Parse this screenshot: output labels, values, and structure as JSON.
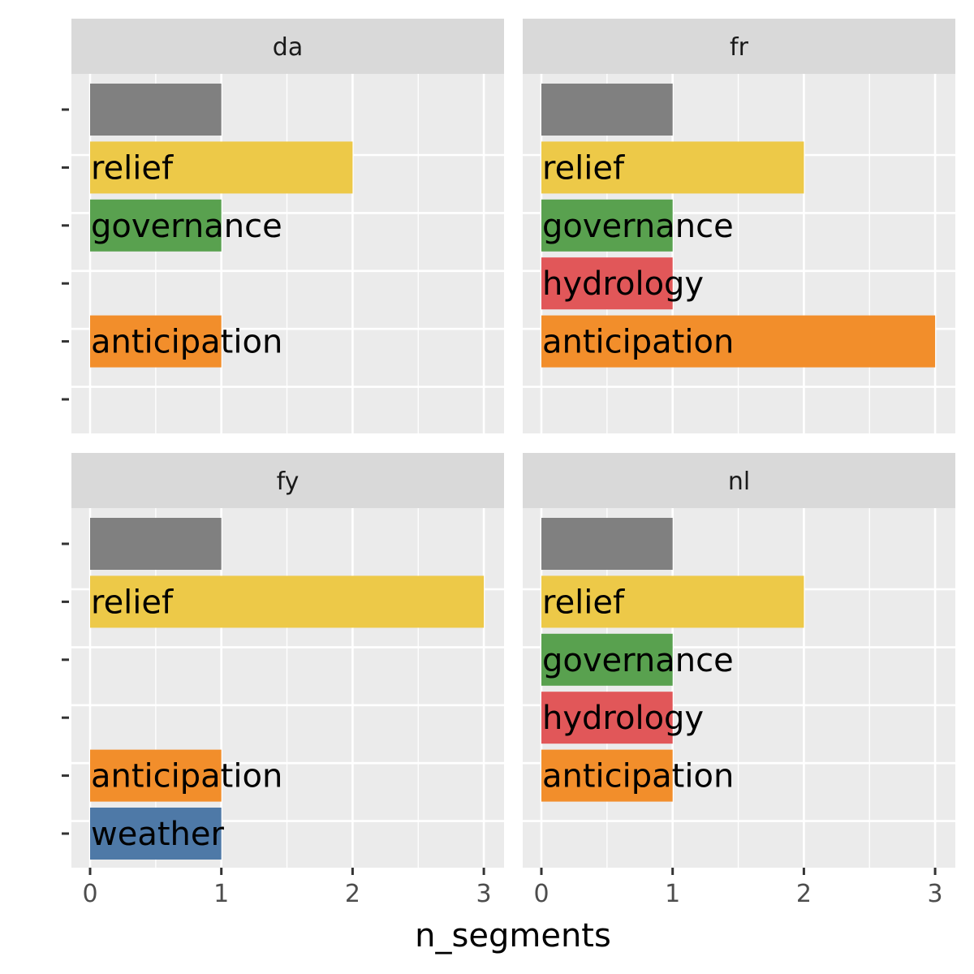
{
  "chart_data": {
    "type": "bar",
    "orientation": "horizontal",
    "facet_layout": "2x2",
    "xlabel": "n_segments",
    "xlim": [
      0,
      3
    ],
    "x_ticks": [
      "0",
      "1",
      "2",
      "3"
    ],
    "grid": true,
    "legend": "none",
    "categories": [
      "",
      "relief",
      "governance",
      "hydrology",
      "anticipation",
      "weather"
    ],
    "category_colors": {
      "": "#808080",
      "relief": "#EDC948",
      "governance": "#59A14F",
      "hydrology": "#E15759",
      "anticipation": "#F28E2B",
      "weather": "#4E79A7"
    },
    "facets": [
      {
        "name": "da",
        "values": [
          1,
          2,
          1,
          null,
          1,
          null
        ]
      },
      {
        "name": "fr",
        "values": [
          1,
          2,
          1,
          1,
          3,
          null
        ]
      },
      {
        "name": "fy",
        "values": [
          1,
          3,
          null,
          null,
          1,
          1
        ]
      },
      {
        "name": "nl",
        "values": [
          1,
          2,
          1,
          1,
          1,
          null
        ]
      }
    ]
  }
}
